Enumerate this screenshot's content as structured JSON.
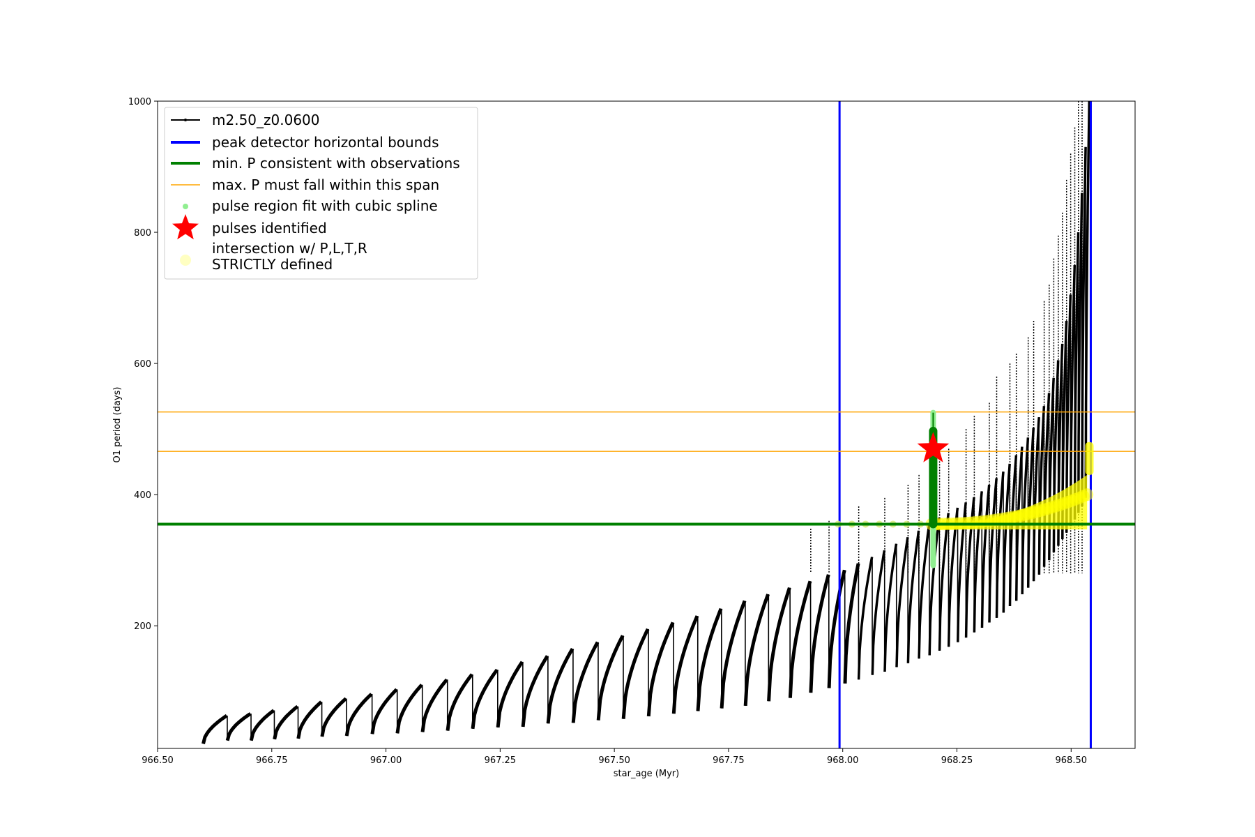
{
  "chart_data": {
    "type": "line",
    "title": "",
    "xlabel": "star_age (Myr)",
    "ylabel": "O1 period (days)",
    "xlim": [
      966.5,
      968.64
    ],
    "ylim": [
      13,
      1000
    ],
    "xticks": [
      "966.50",
      "966.75",
      "967.00",
      "967.25",
      "967.50",
      "967.75",
      "968.00",
      "968.25",
      "968.50"
    ],
    "yticks": [
      "200",
      "400",
      "600",
      "800",
      "1000"
    ],
    "grid": false,
    "legend_position": "top-left",
    "series": [
      {
        "name": "m2.50_z0.0600",
        "color": "#000000",
        "style": "line-with-small-dots",
        "pulses": [
          {
            "start": 966.6,
            "min": 20,
            "max": 63
          },
          {
            "start": 966.653,
            "min": 25,
            "max": 66
          },
          {
            "start": 966.705,
            "min": 25,
            "max": 71
          },
          {
            "start": 966.756,
            "min": 27,
            "max": 77
          },
          {
            "start": 966.808,
            "min": 28,
            "max": 84
          },
          {
            "start": 966.86,
            "min": 31,
            "max": 89
          },
          {
            "start": 966.914,
            "min": 32,
            "max": 96
          },
          {
            "start": 966.97,
            "min": 35,
            "max": 103
          },
          {
            "start": 967.025,
            "min": 36,
            "max": 110
          },
          {
            "start": 967.08,
            "min": 38,
            "max": 118
          },
          {
            "start": 967.135,
            "min": 40,
            "max": 126
          },
          {
            "start": 967.19,
            "min": 43,
            "max": 133
          },
          {
            "start": 967.245,
            "min": 45,
            "max": 145
          },
          {
            "start": 967.3,
            "min": 46,
            "max": 154
          },
          {
            "start": 967.355,
            "min": 51,
            "max": 165
          },
          {
            "start": 967.41,
            "min": 52,
            "max": 175
          },
          {
            "start": 967.465,
            "min": 56,
            "max": 185
          },
          {
            "start": 967.52,
            "min": 58,
            "max": 195
          },
          {
            "start": 967.575,
            "min": 62,
            "max": 205
          },
          {
            "start": 967.63,
            "min": 66,
            "max": 215
          },
          {
            "start": 967.683,
            "min": 70,
            "max": 226
          },
          {
            "start": 967.735,
            "min": 74,
            "max": 238
          },
          {
            "start": 967.787,
            "min": 78,
            "max": 248
          },
          {
            "start": 967.838,
            "min": 85,
            "max": 258
          },
          {
            "start": 967.885,
            "min": 90,
            "max": 268
          },
          {
            "start": 967.93,
            "min": 98,
            "max": 278
          },
          {
            "start": 967.97,
            "min": 105,
            "max": 285
          },
          {
            "start": 968.005,
            "min": 112,
            "max": 295
          },
          {
            "start": 968.035,
            "min": 118,
            "max": 305
          },
          {
            "start": 968.065,
            "min": 125,
            "max": 315
          },
          {
            "start": 968.092,
            "min": 130,
            "max": 325
          },
          {
            "start": 968.118,
            "min": 137,
            "max": 335
          },
          {
            "start": 968.143,
            "min": 143,
            "max": 345
          },
          {
            "start": 968.167,
            "min": 150,
            "max": 355
          },
          {
            "start": 968.19,
            "min": 155,
            "max": 365
          },
          {
            "start": 968.212,
            "min": 162,
            "max": 372
          },
          {
            "start": 968.232,
            "min": 168,
            "max": 380
          },
          {
            "start": 968.252,
            "min": 175,
            "max": 388
          },
          {
            "start": 968.27,
            "min": 182,
            "max": 396
          },
          {
            "start": 968.288,
            "min": 190,
            "max": 405
          },
          {
            "start": 968.305,
            "min": 197,
            "max": 415
          },
          {
            "start": 968.321,
            "min": 205,
            "max": 425
          },
          {
            "start": 968.337,
            "min": 212,
            "max": 435
          },
          {
            "start": 968.352,
            "min": 220,
            "max": 447
          },
          {
            "start": 968.366,
            "min": 230,
            "max": 460
          },
          {
            "start": 968.38,
            "min": 238,
            "max": 473
          },
          {
            "start": 968.393,
            "min": 248,
            "max": 487
          },
          {
            "start": 968.406,
            "min": 258,
            "max": 502
          },
          {
            "start": 968.418,
            "min": 268,
            "max": 518
          },
          {
            "start": 968.43,
            "min": 278,
            "max": 535
          },
          {
            "start": 968.441,
            "min": 290,
            "max": 555
          },
          {
            "start": 968.452,
            "min": 300,
            "max": 578
          },
          {
            "start": 968.462,
            "min": 312,
            "max": 605
          },
          {
            "start": 968.472,
            "min": 322,
            "max": 630
          },
          {
            "start": 968.481,
            "min": 332,
            "max": 665
          },
          {
            "start": 968.49,
            "min": 342,
            "max": 705
          },
          {
            "start": 968.499,
            "min": 352,
            "max": 750
          },
          {
            "start": 968.508,
            "min": 362,
            "max": 800
          },
          {
            "start": 968.516,
            "min": 372,
            "max": 860
          },
          {
            "start": 968.524,
            "min": 382,
            "max": 930
          },
          {
            "start": 968.532,
            "min": 395,
            "max": 1000
          }
        ],
        "spikes": [
          {
            "x": 967.93,
            "top": 348
          },
          {
            "x": 967.97,
            "top": 360
          },
          {
            "x": 968.035,
            "top": 382
          },
          {
            "x": 968.092,
            "top": 395
          },
          {
            "x": 968.143,
            "top": 415
          },
          {
            "x": 968.167,
            "top": 430
          },
          {
            "x": 968.212,
            "top": 455
          },
          {
            "x": 968.232,
            "top": 470
          },
          {
            "x": 968.27,
            "top": 500
          },
          {
            "x": 968.288,
            "top": 520
          },
          {
            "x": 968.321,
            "top": 540
          },
          {
            "x": 968.337,
            "top": 580
          },
          {
            "x": 968.366,
            "top": 600
          },
          {
            "x": 968.38,
            "top": 615
          },
          {
            "x": 968.406,
            "top": 640
          },
          {
            "x": 968.418,
            "top": 665
          },
          {
            "x": 968.441,
            "top": 695
          },
          {
            "x": 968.452,
            "top": 720
          },
          {
            "x": 968.462,
            "top": 760
          },
          {
            "x": 968.472,
            "top": 795
          },
          {
            "x": 968.481,
            "top": 830
          },
          {
            "x": 968.49,
            "top": 880
          },
          {
            "x": 968.499,
            "top": 920
          },
          {
            "x": 968.508,
            "top": 960
          },
          {
            "x": 968.516,
            "top": 1000
          },
          {
            "x": 968.524,
            "top": 1000
          }
        ]
      },
      {
        "name": "peak detector horizontal bounds",
        "color": "#0000ff",
        "x_lines": [
          967.993,
          968.543
        ]
      },
      {
        "name": "min. P consistent with observations",
        "color": "#008000",
        "y_line": 355,
        "segment": {
          "x": 968.198,
          "y_from": 355,
          "y_to": 497
        }
      },
      {
        "name": "max. P must fall within this span",
        "color": "#ffa500",
        "y_lines": [
          466,
          526
        ]
      },
      {
        "name": "pulse region fit with cubic spline",
        "color": "#90ee90",
        "segment": {
          "x": 968.198,
          "y_from": 292,
          "y_to": 525
        }
      },
      {
        "name": "pulses identified",
        "color": "#ff0000",
        "points": [
          {
            "x": 968.198,
            "y": 470
          }
        ]
      },
      {
        "name": "intersection w/ P,L,T,R\nSTRICTLY defined",
        "color": "#ffff00",
        "band": {
          "x_from": 968.195,
          "x_to": 968.535,
          "y_base": 355,
          "y_top_end": 430
        },
        "sparse_x": [
          967.99,
          968.02,
          968.05,
          968.08,
          968.11,
          968.14,
          968.17
        ],
        "end_cluster": {
          "x": 968.54,
          "y_from": 430,
          "y_to": 480
        }
      }
    ]
  }
}
